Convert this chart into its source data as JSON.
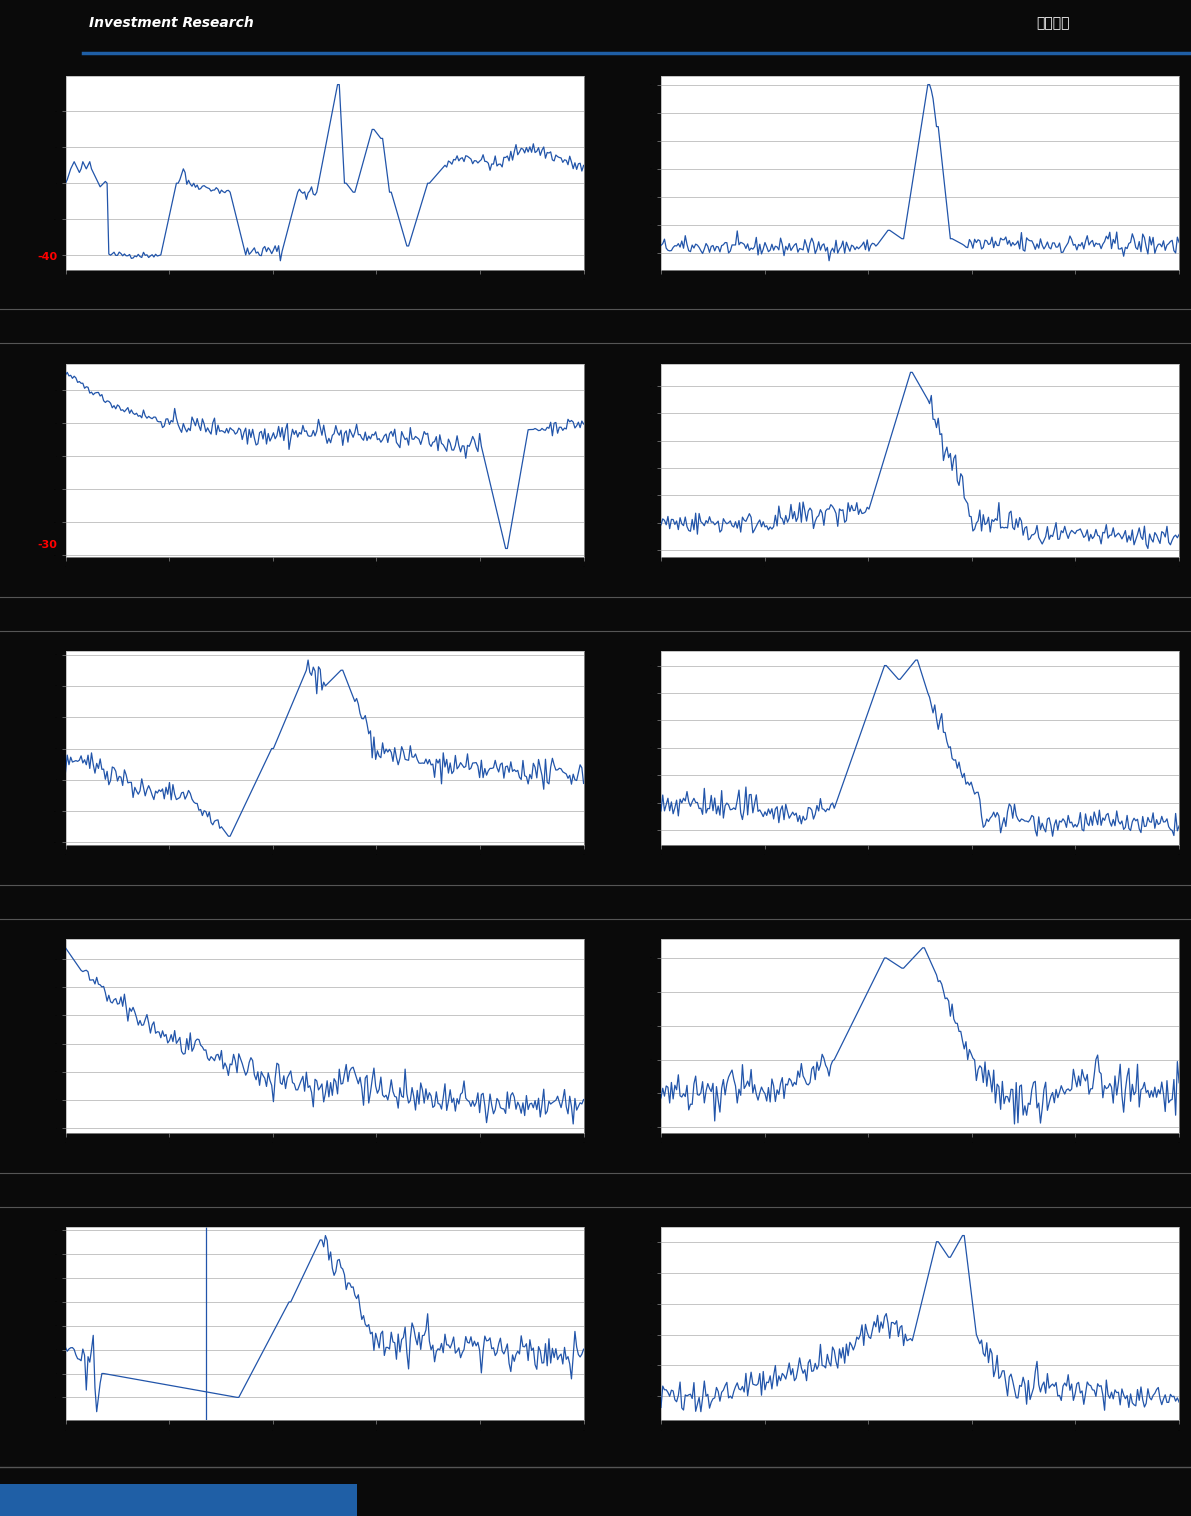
{
  "background_color": "#0a0a0a",
  "panel_bg": "#ffffff",
  "line_color": "#2255aa",
  "header_line_color": "#1f5fa6",
  "footer_bar_color": "#1f5fa6",
  "grid_color": "#bbbbbb",
  "label_color_red": "#ff0000",
  "separator_color": "#555555",
  "n_rows": 5,
  "n_cols": 2,
  "header_text_left": "Investment Research",
  "header_text_right": "估値周报"
}
